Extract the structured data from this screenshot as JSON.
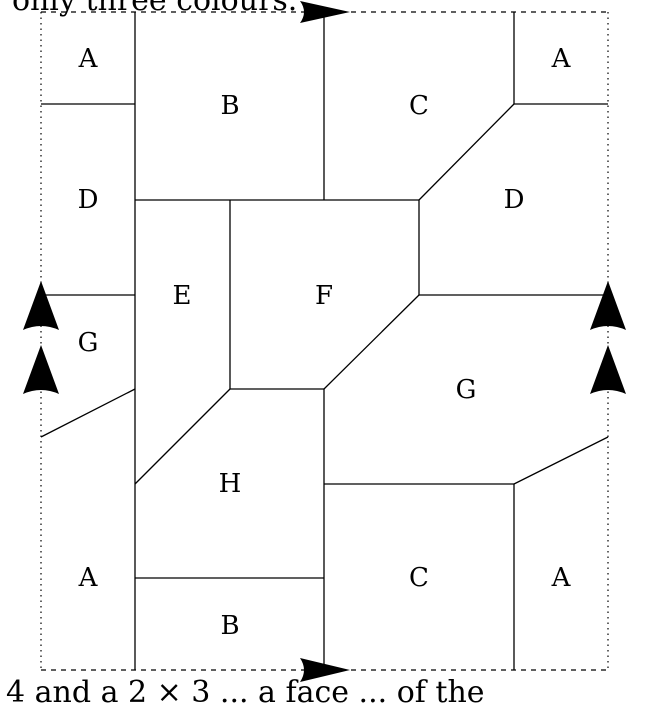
{
  "text": {
    "top_line": "only three colours.",
    "bottom_line": "4 and a 2 × 3 ... a face ... of the"
  },
  "regions": {
    "a_top_left": "A",
    "b_top": "B",
    "c_top": "C",
    "a_top_right": "A",
    "d_left": "D",
    "d_right": "D",
    "e": "E",
    "f": "F",
    "g_left": "G",
    "g_right": "G",
    "h": "H",
    "a_bottom_left": "A",
    "b_bottom": "B",
    "c_bottom": "C",
    "a_bottom_right": "A"
  }
}
